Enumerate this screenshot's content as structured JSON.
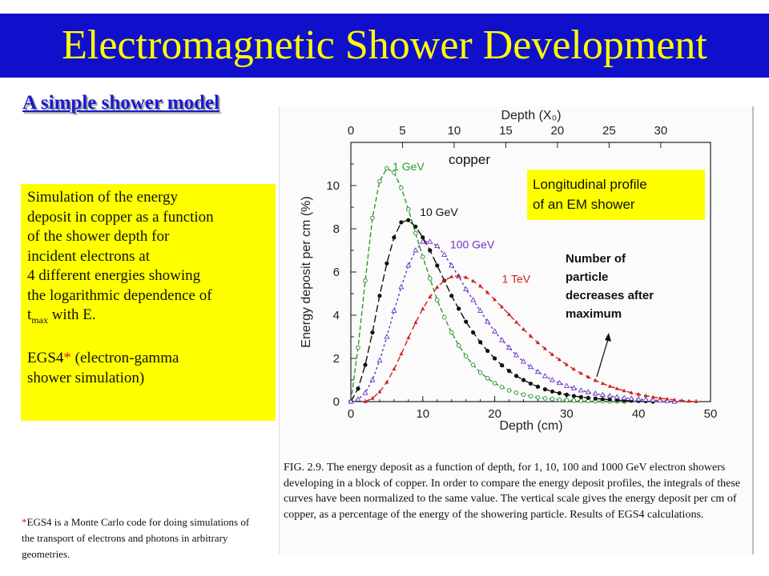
{
  "slide": {
    "title": "Electromagnetic Shower Development",
    "subtitle": "A simple shower model",
    "description": {
      "line1": "Simulation of the energy",
      "line2": "deposit in copper as a function",
      "line3": "of the shower depth for",
      "line4": "incident electrons at",
      "line5": "4 different energies showing",
      "line6": "the logarithmic dependence of",
      "tmax_t": "t",
      "tmax_sub": "max",
      "tmax_rest": " with E.",
      "egs_prefix": "EGS4",
      "egs_star": "*",
      "egs_rest": " (electron-gamma",
      "egs_line2": "shower simulation)"
    },
    "footnote": {
      "star": "*",
      "text": "EGS4 is a Monte Carlo code for doing simulations of the transport of electrons and photons in arbitrary geometries."
    }
  },
  "figure": {
    "copper_label": "copper",
    "profile_line1": "Longitudinal profile",
    "profile_line2": "of an EM shower",
    "note_line1": "Number of",
    "note_line2": "particle",
    "note_line3": "decreases after",
    "note_line4": "maximum",
    "caption_prefix": "FIG. 2.9.",
    "caption_text": "The energy deposit as a function of depth, for 1, 10, 100 and 1000 GeV electron showers developing in a block of copper. In order to compare the energy deposit profiles, the integrals of these curves have been normalized to the same value. The vertical scale gives the energy deposit per cm of copper, as a percentage of the energy of the showering particle. Results of EGS4 calculations."
  },
  "chart_data": {
    "type": "line",
    "xlabel": "Depth  (cm)",
    "ylabel": "Energy  deposit  per  cm  (%)",
    "top_axis_label": "Depth  (X₀)",
    "xlim": [
      0,
      50
    ],
    "ylim": [
      0,
      12
    ],
    "xticks": [
      0,
      10,
      20,
      30,
      40,
      50
    ],
    "xtick_labels": [
      "0",
      "10",
      "20",
      "30",
      "40",
      "50"
    ],
    "yticks": [
      0,
      2,
      4,
      6,
      8,
      10
    ],
    "ytick_labels": [
      "0",
      "2",
      "4",
      "6",
      "8",
      "10"
    ],
    "top_ticks": [
      0,
      5,
      10,
      15,
      20,
      25,
      30
    ],
    "top_tick_labels": [
      "0",
      "5",
      "10",
      "15",
      "20",
      "25",
      "30"
    ],
    "top_axis_cm_per_x0": 1.436,
    "grid": false,
    "series": [
      {
        "name": "1 GeV",
        "color": "#2e9a2e",
        "marker": "open-circle",
        "x": [
          0,
          1,
          2,
          3,
          4,
          5,
          6,
          7,
          8,
          9,
          10,
          11,
          12,
          13,
          14,
          15,
          16,
          17,
          18,
          19,
          20,
          21,
          22,
          23,
          24,
          25,
          26,
          27,
          28,
          29,
          30,
          31,
          32,
          33,
          34,
          35,
          36,
          37,
          38
        ],
        "values": [
          0.0,
          2.5,
          5.6,
          8.5,
          10.2,
          10.8,
          10.6,
          9.9,
          8.9,
          7.8,
          6.7,
          5.7,
          4.7,
          3.9,
          3.2,
          2.6,
          2.1,
          1.7,
          1.35,
          1.08,
          0.85,
          0.67,
          0.52,
          0.41,
          0.32,
          0.25,
          0.19,
          0.15,
          0.12,
          0.09,
          0.07,
          0.05,
          0.04,
          0.03,
          0.02,
          0.02,
          0.01,
          0.01,
          0.0
        ]
      },
      {
        "name": "10 GeV",
        "color": "#111111",
        "marker": "filled-circle",
        "x": [
          0,
          1,
          2,
          3,
          4,
          5,
          6,
          7,
          8,
          9,
          10,
          11,
          12,
          13,
          14,
          15,
          16,
          17,
          18,
          19,
          20,
          21,
          22,
          23,
          24,
          25,
          26,
          27,
          28,
          29,
          30,
          31,
          32,
          33,
          34,
          35,
          36,
          37,
          38,
          39,
          40,
          41,
          42
        ],
        "values": [
          0.0,
          0.6,
          1.7,
          3.2,
          4.9,
          6.4,
          7.6,
          8.3,
          8.4,
          8.1,
          7.6,
          7.0,
          6.3,
          5.6,
          4.9,
          4.3,
          3.7,
          3.2,
          2.75,
          2.35,
          2.0,
          1.68,
          1.42,
          1.19,
          1.0,
          0.83,
          0.69,
          0.57,
          0.47,
          0.39,
          0.32,
          0.26,
          0.21,
          0.17,
          0.14,
          0.11,
          0.09,
          0.07,
          0.05,
          0.04,
          0.03,
          0.02,
          0.0
        ]
      },
      {
        "name": "100 GeV",
        "color": "#6a35c8",
        "marker": "open-triangle",
        "x": [
          0,
          1,
          2,
          3,
          4,
          5,
          6,
          7,
          8,
          9,
          10,
          11,
          12,
          13,
          14,
          15,
          16,
          17,
          18,
          19,
          20,
          21,
          22,
          23,
          24,
          25,
          26,
          27,
          28,
          29,
          30,
          31,
          32,
          33,
          34,
          35,
          36,
          37,
          38,
          39,
          40,
          41,
          42,
          43,
          44,
          45
        ],
        "values": [
          0.0,
          0.1,
          0.4,
          1.0,
          1.9,
          3.0,
          4.2,
          5.3,
          6.3,
          7.0,
          7.4,
          7.4,
          7.2,
          6.8,
          6.3,
          5.8,
          5.2,
          4.7,
          4.2,
          3.7,
          3.25,
          2.85,
          2.5,
          2.15,
          1.85,
          1.6,
          1.38,
          1.18,
          1.0,
          0.86,
          0.73,
          0.62,
          0.52,
          0.44,
          0.37,
          0.31,
          0.26,
          0.21,
          0.17,
          0.14,
          0.11,
          0.09,
          0.07,
          0.05,
          0.03,
          0.0
        ]
      },
      {
        "name": "1 TeV",
        "color": "#d02020",
        "marker": "filled-triangle",
        "x": [
          2,
          3,
          4,
          5,
          6,
          7,
          8,
          9,
          10,
          11,
          12,
          13,
          14,
          15,
          16,
          17,
          18,
          19,
          20,
          21,
          22,
          23,
          24,
          25,
          26,
          27,
          28,
          29,
          30,
          31,
          32,
          33,
          34,
          35,
          36,
          37,
          38,
          39,
          40,
          41,
          42,
          43,
          44,
          45,
          46,
          47,
          48
        ],
        "values": [
          0.0,
          0.15,
          0.45,
          0.9,
          1.5,
          2.2,
          2.95,
          3.65,
          4.3,
          4.85,
          5.3,
          5.6,
          5.78,
          5.82,
          5.75,
          5.58,
          5.35,
          5.05,
          4.72,
          4.38,
          4.03,
          3.68,
          3.35,
          3.03,
          2.73,
          2.45,
          2.18,
          1.94,
          1.71,
          1.5,
          1.31,
          1.14,
          0.98,
          0.84,
          0.71,
          0.6,
          0.5,
          0.41,
          0.34,
          0.27,
          0.21,
          0.16,
          0.12,
          0.08,
          0.05,
          0.02,
          0.0
        ]
      }
    ],
    "series_labels": [
      "1 GeV",
      "10 GeV",
      "100 GeV",
      "1 TeV"
    ]
  }
}
